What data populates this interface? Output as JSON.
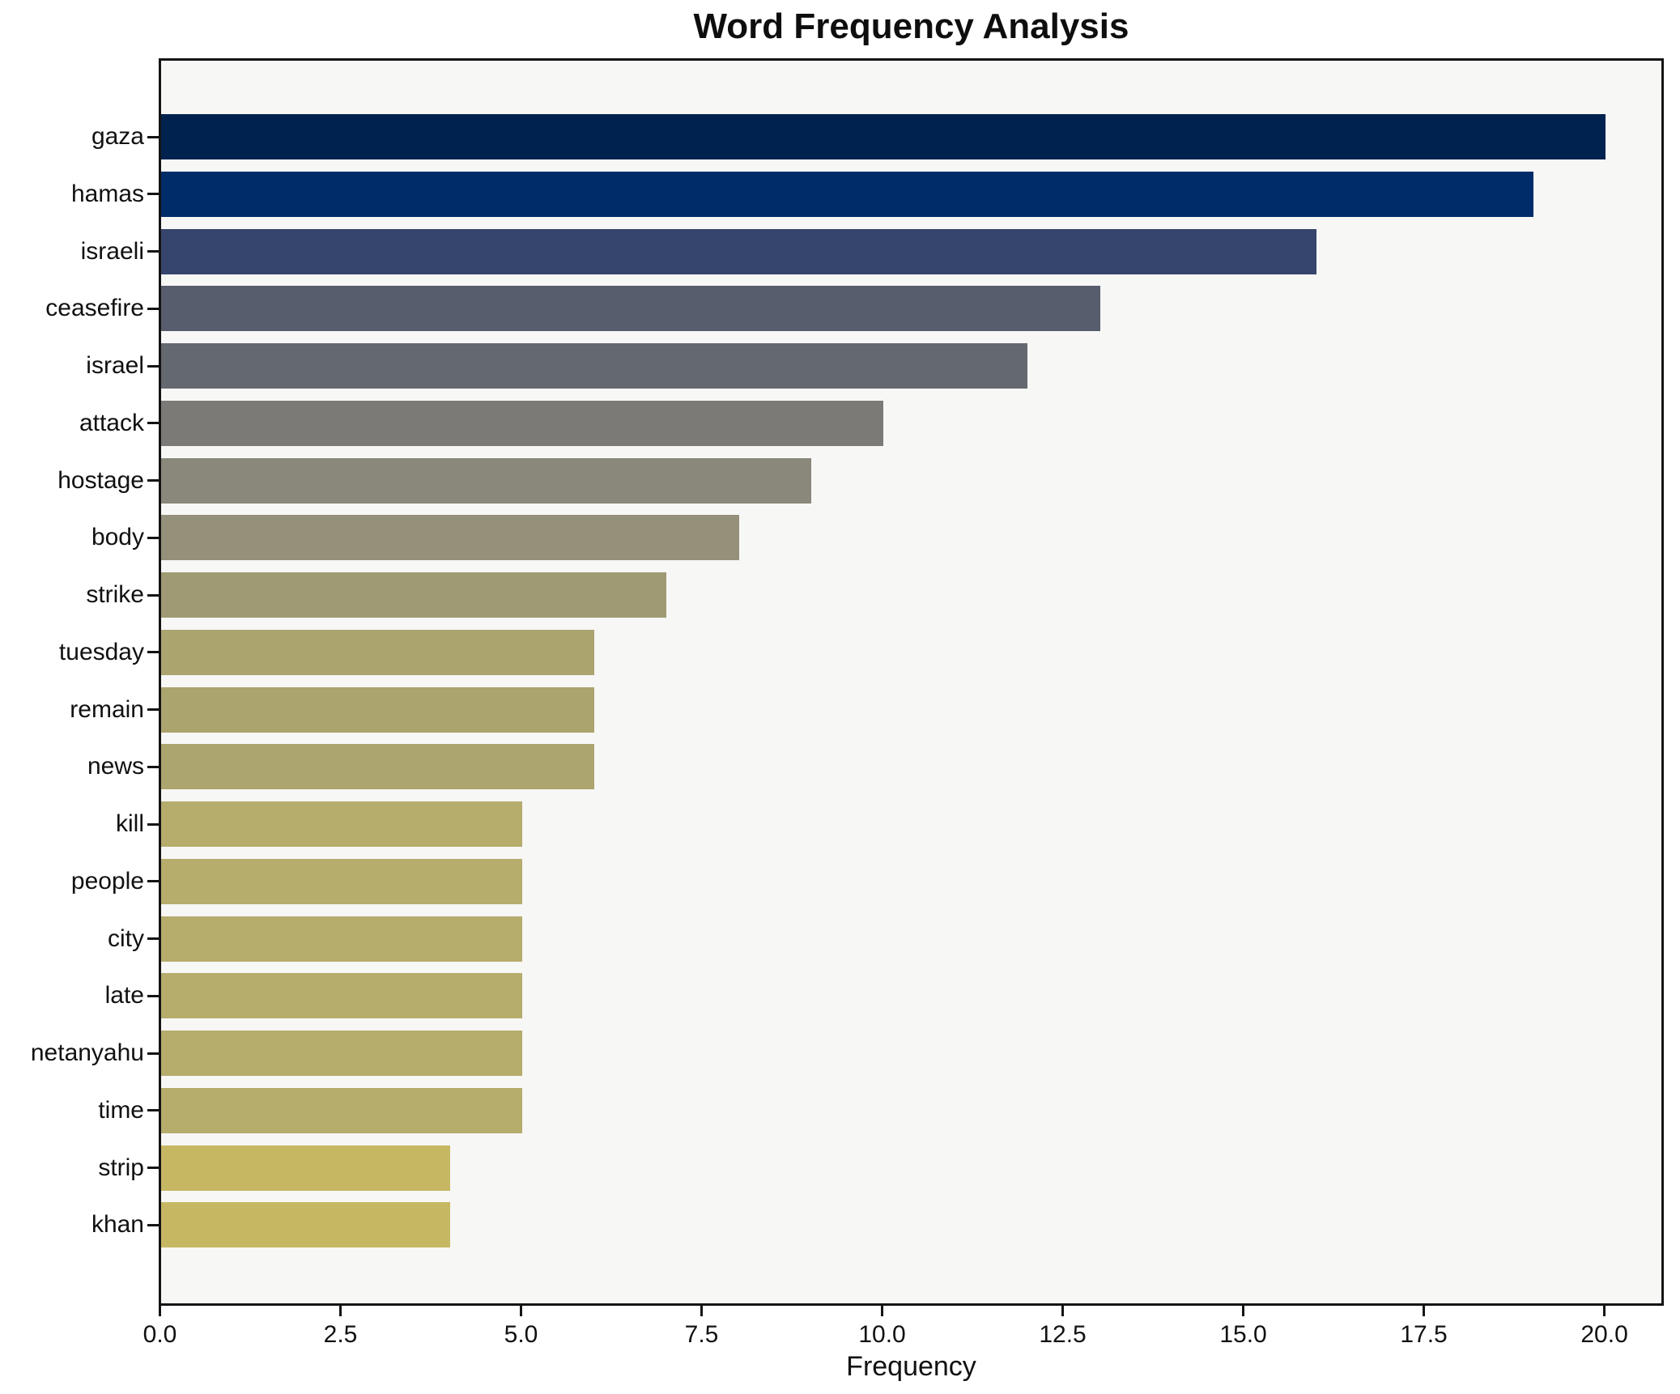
{
  "chart_data": {
    "type": "bar",
    "orientation": "horizontal",
    "title": "Word Frequency Analysis",
    "xlabel": "Frequency",
    "ylabel": "",
    "grid": false,
    "legend_position": "none",
    "xlim": [
      0,
      20.84
    ],
    "xticks": [
      0,
      2.5,
      5,
      7.5,
      10,
      12.5,
      15,
      17.5,
      20
    ],
    "xtick_labels": [
      "0.0",
      "2.5",
      "5.0",
      "7.5",
      "10.0",
      "12.5",
      "15.0",
      "17.5",
      "20.0"
    ],
    "categories": [
      "gaza",
      "hamas",
      "israeli",
      "ceasefire",
      "israel",
      "attack",
      "hostage",
      "body",
      "strike",
      "tuesday",
      "remain",
      "news",
      "kill",
      "people",
      "city",
      "late",
      "netanyahu",
      "time",
      "strip",
      "khan"
    ],
    "values": [
      20,
      19,
      16,
      13,
      12,
      10,
      9,
      8,
      7,
      6,
      6,
      6,
      5,
      5,
      5,
      5,
      5,
      5,
      4,
      4
    ],
    "bar_colors": [
      "#00224e",
      "#002d69",
      "#36456c",
      "#575d6d",
      "#64686f",
      "#7b7a77",
      "#8a877b",
      "#95907a",
      "#a09a74",
      "#aca46f",
      "#aca46f",
      "#ada56f",
      "#b6ac6c",
      "#b6ac6c",
      "#b6ac6c",
      "#b6ac6c",
      "#b6ac6c",
      "#b6ac6c",
      "#c6b863",
      "#c6b863"
    ],
    "colormap": "cividis"
  },
  "style": {
    "figure_background": "#ffffff",
    "axes_background": "#f7f7f6",
    "spine_color": "#141414",
    "text_color": "#111111"
  }
}
